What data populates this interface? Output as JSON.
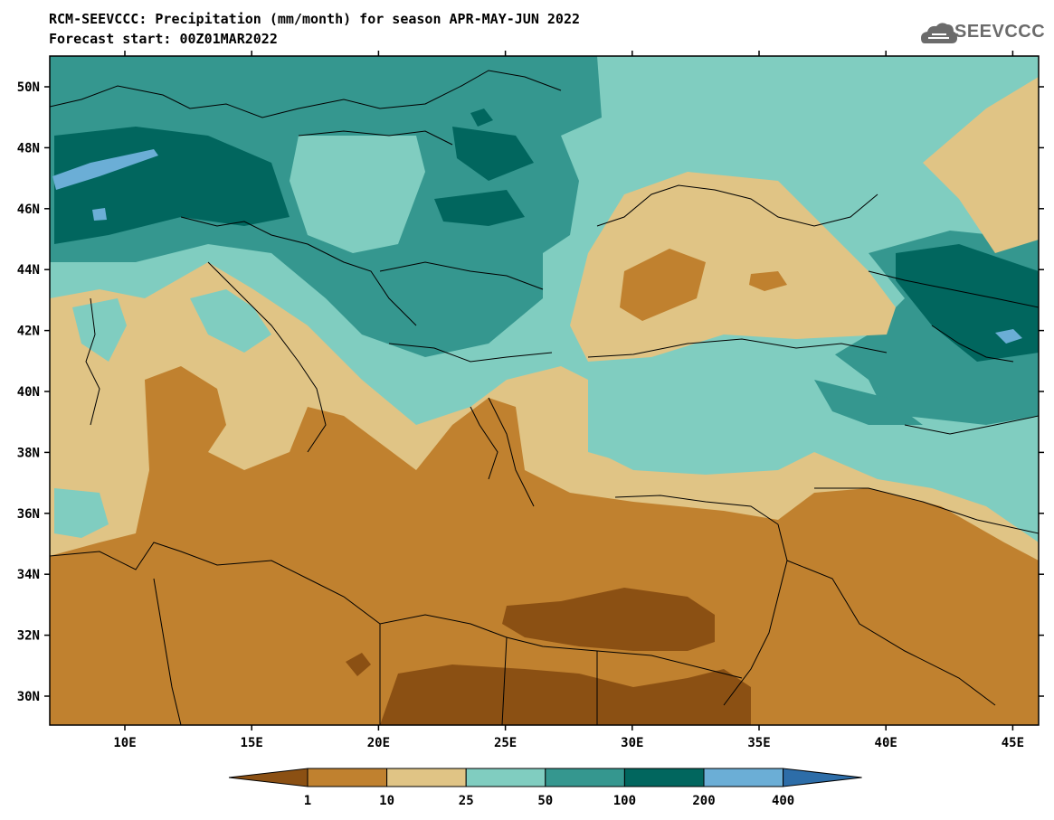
{
  "header": {
    "title_line1": "RCM-SEEVCCC: Precipitation (mm/month) for season APR-MAY-JUN 2022",
    "title_line2": "Forecast start: 00Z01MAR2022",
    "logo_text": "SEEVCCC",
    "logo_icon": "cloud-icon"
  },
  "map": {
    "lon_labels": [
      "10E",
      "15E",
      "20E",
      "25E",
      "30E",
      "35E",
      "40E",
      "45E"
    ],
    "lat_labels": [
      "50N",
      "48N",
      "46N",
      "44N",
      "42N",
      "40N",
      "38N",
      "36N",
      "34N",
      "32N",
      "30N"
    ],
    "region": "Southeast Europe, Mediterranean, Black Sea, Middle East"
  },
  "colorbar": {
    "unit": "mm/month",
    "levels": [
      "1",
      "10",
      "25",
      "50",
      "100",
      "200",
      "400"
    ],
    "colors": [
      "#8b5013",
      "#c0812f",
      "#e0c485",
      "#80cdc0",
      "#35978f",
      "#01665e",
      "#6baed6",
      "#2d6da8"
    ]
  }
}
